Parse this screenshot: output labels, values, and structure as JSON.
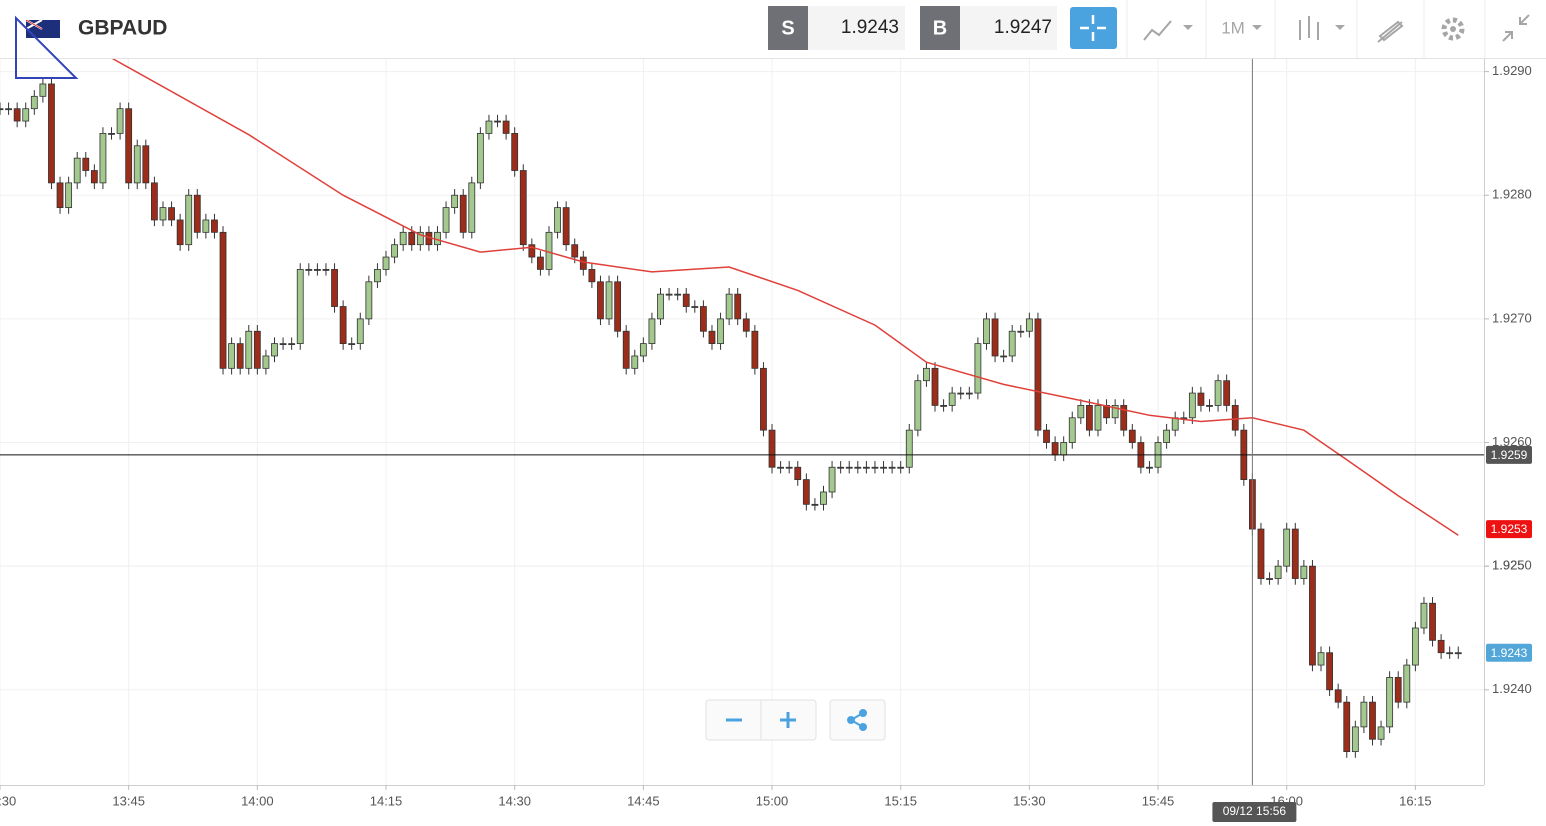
{
  "header": {
    "symbol": "GBPAUD",
    "sell_label": "S",
    "sell_price": "1.9243",
    "buy_label": "B",
    "buy_price": "1.9247",
    "timeframe": "1M"
  },
  "chart_data": {
    "type": "candlestick",
    "x": [
      "13:30",
      "13:31",
      "13:32",
      "13:33",
      "13:34",
      "13:35",
      "13:36",
      "13:37",
      "13:38",
      "13:39",
      "13:40",
      "13:41",
      "13:42",
      "13:43",
      "13:44",
      "13:45",
      "13:46",
      "13:47",
      "13:48",
      "13:49",
      "13:50",
      "13:51",
      "13:52",
      "13:53",
      "13:54",
      "13:55",
      "13:56",
      "13:57",
      "13:58",
      "13:59",
      "14:00",
      "14:01",
      "14:02",
      "14:03",
      "14:04",
      "14:05",
      "14:06",
      "14:07",
      "14:08",
      "14:09",
      "14:10",
      "14:11",
      "14:12",
      "14:13",
      "14:14",
      "14:15",
      "14:16",
      "14:17",
      "14:18",
      "14:19",
      "14:20",
      "14:21",
      "14:22",
      "14:23",
      "14:24",
      "14:25",
      "14:26",
      "14:27",
      "14:28",
      "14:29",
      "14:30",
      "14:31",
      "14:32",
      "14:33",
      "14:34",
      "14:35",
      "14:36",
      "14:37",
      "14:38",
      "14:39",
      "14:40",
      "14:41",
      "14:42",
      "14:43",
      "14:44",
      "14:45",
      "14:46",
      "14:47",
      "14:48",
      "14:49",
      "14:50",
      "14:51",
      "14:52",
      "14:53",
      "14:54",
      "14:55",
      "14:56",
      "14:57",
      "14:58",
      "14:59",
      "15:00",
      "15:01",
      "15:02",
      "15:03",
      "15:04",
      "15:05",
      "15:06",
      "15:07",
      "15:08",
      "15:09",
      "15:10",
      "15:11",
      "15:12",
      "15:13",
      "15:14",
      "15:15",
      "15:16",
      "15:17",
      "15:18",
      "15:19",
      "15:20",
      "15:21",
      "15:22",
      "15:23",
      "15:24",
      "15:25",
      "15:26",
      "15:27",
      "15:28",
      "15:29",
      "15:30",
      "15:31",
      "15:32",
      "15:33",
      "15:34",
      "15:35",
      "15:36",
      "15:37",
      "15:38",
      "15:39",
      "15:40",
      "15:41",
      "15:42",
      "15:43",
      "15:44",
      "15:45",
      "15:46",
      "15:47",
      "15:48",
      "15:49",
      "15:50",
      "15:51",
      "15:52",
      "15:53",
      "15:54",
      "15:55",
      "15:56",
      "15:57",
      "15:58",
      "15:59",
      "16:00",
      "16:01",
      "16:02",
      "16:03",
      "16:04",
      "16:05",
      "16:06",
      "16:07",
      "16:08",
      "16:09",
      "16:10",
      "16:11",
      "16:12",
      "16:13",
      "16:14",
      "16:15",
      "16:16",
      "16:17",
      "16:18",
      "16:19",
      "16:20"
    ],
    "open": [
      1.9287,
      1.9287,
      1.9287,
      1.9286,
      1.9287,
      1.9288,
      1.9289,
      1.9281,
      1.9279,
      1.9281,
      1.9283,
      1.9282,
      1.9281,
      1.9285,
      1.9285,
      1.9287,
      1.9281,
      1.9284,
      1.9281,
      1.9278,
      1.9279,
      1.9278,
      1.9276,
      1.928,
      1.9277,
      1.9278,
      1.9277,
      1.9266,
      1.9268,
      1.9266,
      1.9269,
      1.9266,
      1.9267,
      1.9268,
      1.9268,
      1.9268,
      1.9274,
      1.9274,
      1.9274,
      1.9274,
      1.9271,
      1.9268,
      1.9268,
      1.927,
      1.9273,
      1.9274,
      1.9275,
      1.9276,
      1.9277,
      1.9276,
      1.9277,
      1.9276,
      1.9277,
      1.9279,
      1.928,
      1.9277,
      1.9281,
      1.9285,
      1.9286,
      1.9286,
      1.9285,
      1.9282,
      1.9276,
      1.9275,
      1.9274,
      1.9277,
      1.9279,
      1.9276,
      1.9275,
      1.9274,
      1.9273,
      1.927,
      1.9273,
      1.9269,
      1.9266,
      1.9267,
      1.9268,
      1.927,
      1.9272,
      1.9272,
      1.9272,
      1.9271,
      1.9271,
      1.9269,
      1.9268,
      1.927,
      1.9272,
      1.927,
      1.9269,
      1.9266,
      1.9261,
      1.9258,
      1.9258,
      1.9258,
      1.9257,
      1.9255,
      1.9255,
      1.9256,
      1.9258,
      1.9258,
      1.9258,
      1.9258,
      1.9258,
      1.9258,
      1.9258,
      1.9258,
      1.9258,
      1.9261,
      1.9265,
      1.9266,
      1.9263,
      1.9263,
      1.9264,
      1.9264,
      1.9264,
      1.9268,
      1.927,
      1.9267,
      1.9267,
      1.9269,
      1.9269,
      1.927,
      1.9261,
      1.926,
      1.9259,
      1.926,
      1.9262,
      1.9263,
      1.9261,
      1.9263,
      1.9262,
      1.9263,
      1.9261,
      1.926,
      1.9258,
      1.9258,
      1.926,
      1.9261,
      1.9262,
      1.9262,
      1.9264,
      1.9263,
      1.9263,
      1.9265,
      1.9263,
      1.9261,
      1.9257,
      1.9253,
      1.9249,
      1.9249,
      1.925,
      1.9253,
      1.9249,
      1.925,
      1.9242,
      1.9243,
      1.924,
      1.9239,
      1.9235,
      1.9237,
      1.9239,
      1.9236,
      1.9237,
      1.9241,
      1.9239,
      1.9242,
      1.9245,
      1.9247,
      1.9244,
      1.9243,
      1.9243
    ],
    "high": [
      1.92875,
      1.92875,
      1.92875,
      1.92875,
      1.92885,
      1.92895,
      1.92895,
      1.92815,
      1.92815,
      1.92835,
      1.92835,
      1.92825,
      1.92855,
      1.92855,
      1.92875,
      1.92875,
      1.92845,
      1.92845,
      1.92815,
      1.92795,
      1.92795,
      1.92785,
      1.92805,
      1.92805,
      1.92785,
      1.92785,
      1.92775,
      1.92685,
      1.92685,
      1.92695,
      1.92695,
      1.92675,
      1.92685,
      1.92685,
      1.92685,
      1.92745,
      1.92745,
      1.92745,
      1.92745,
      1.92745,
      1.92715,
      1.92685,
      1.92705,
      1.92735,
      1.92745,
      1.92755,
      1.92765,
      1.92775,
      1.92775,
      1.92775,
      1.92775,
      1.92775,
      1.92795,
      1.92805,
      1.92805,
      1.92815,
      1.92855,
      1.92865,
      1.92865,
      1.92865,
      1.92855,
      1.92825,
      1.92765,
      1.92755,
      1.92775,
      1.92795,
      1.92795,
      1.92765,
      1.92755,
      1.92745,
      1.92735,
      1.92735,
      1.92735,
      1.92695,
      1.92675,
      1.92685,
      1.92705,
      1.92725,
      1.92725,
      1.92725,
      1.92725,
      1.92715,
      1.92715,
      1.92695,
      1.92705,
      1.92725,
      1.92725,
      1.92705,
      1.92695,
      1.92665,
      1.92615,
      1.92585,
      1.92585,
      1.92585,
      1.92575,
      1.92555,
      1.92565,
      1.92585,
      1.92585,
      1.92585,
      1.92585,
      1.92585,
      1.92585,
      1.92585,
      1.92585,
      1.92585,
      1.92615,
      1.92655,
      1.92665,
      1.92665,
      1.92635,
      1.92645,
      1.92645,
      1.92645,
      1.92685,
      1.92705,
      1.92705,
      1.92675,
      1.92695,
      1.92695,
      1.92705,
      1.92705,
      1.92615,
      1.92605,
      1.92605,
      1.92625,
      1.92635,
      1.92635,
      1.92635,
      1.92635,
      1.92635,
      1.92635,
      1.92615,
      1.92605,
      1.92585,
      1.92605,
      1.92615,
      1.92625,
      1.92625,
      1.92645,
      1.92645,
      1.92635,
      1.92655,
      1.92655,
      1.92635,
      1.92615,
      1.92575,
      1.92535,
      1.92495,
      1.92505,
      1.92535,
      1.92535,
      1.92505,
      1.92505,
      1.92435,
      1.92435,
      1.92405,
      1.92395,
      1.92375,
      1.92395,
      1.92395,
      1.92375,
      1.92415,
      1.92415,
      1.92425,
      1.92455,
      1.92475,
      1.92475,
      1.92445,
      1.92435,
      1.92435
    ],
    "low": [
      1.92865,
      1.92865,
      1.92855,
      1.92855,
      1.92865,
      1.92875,
      1.92805,
      1.92785,
      1.92785,
      1.92805,
      1.92815,
      1.92805,
      1.92805,
      1.92845,
      1.92845,
      1.92805,
      1.92805,
      1.92805,
      1.92775,
      1.92775,
      1.92775,
      1.92755,
      1.92755,
      1.92765,
      1.92765,
      1.92765,
      1.92655,
      1.92655,
      1.92655,
      1.92655,
      1.92655,
      1.92655,
      1.92665,
      1.92675,
      1.92675,
      1.92675,
      1.92735,
      1.92735,
      1.92735,
      1.92705,
      1.92675,
      1.92675,
      1.92675,
      1.92695,
      1.92725,
      1.92735,
      1.92745,
      1.92755,
      1.92755,
      1.92755,
      1.92755,
      1.92755,
      1.92765,
      1.92785,
      1.92765,
      1.92765,
      1.92805,
      1.92845,
      1.92855,
      1.92845,
      1.92815,
      1.92755,
      1.92745,
      1.92735,
      1.92735,
      1.92765,
      1.92755,
      1.92745,
      1.92735,
      1.92725,
      1.92695,
      1.92695,
      1.92685,
      1.92655,
      1.92655,
      1.92665,
      1.92675,
      1.92695,
      1.92715,
      1.92715,
      1.92705,
      1.92705,
      1.92685,
      1.92675,
      1.92675,
      1.92695,
      1.92695,
      1.92685,
      1.92655,
      1.92605,
      1.92575,
      1.92575,
      1.92575,
      1.92565,
      1.92545,
      1.92545,
      1.92545,
      1.92555,
      1.92575,
      1.92575,
      1.92575,
      1.92575,
      1.92575,
      1.92575,
      1.92575,
      1.92575,
      1.92575,
      1.92605,
      1.92645,
      1.92625,
      1.92625,
      1.92625,
      1.92635,
      1.92635,
      1.92635,
      1.92675,
      1.92665,
      1.92665,
      1.92665,
      1.92685,
      1.92685,
      1.92605,
      1.92595,
      1.92585,
      1.92585,
      1.92595,
      1.92615,
      1.92605,
      1.92605,
      1.92615,
      1.92615,
      1.92605,
      1.92595,
      1.92575,
      1.92575,
      1.92575,
      1.92595,
      1.92605,
      1.92615,
      1.92615,
      1.92625,
      1.92625,
      1.92625,
      1.92625,
      1.92605,
      1.92565,
      1.92525,
      1.92485,
      1.92485,
      1.92485,
      1.92495,
      1.92485,
      1.92485,
      1.92415,
      1.92415,
      1.92395,
      1.92385,
      1.92345,
      1.92345,
      1.92365,
      1.92355,
      1.92355,
      1.92365,
      1.92385,
      1.92385,
      1.92415,
      1.92445,
      1.92435,
      1.92425,
      1.92425,
      1.92425
    ],
    "close": [
      1.9287,
      1.9287,
      1.9286,
      1.9287,
      1.9288,
      1.9289,
      1.9281,
      1.9279,
      1.9281,
      1.9283,
      1.9282,
      1.9281,
      1.9285,
      1.9285,
      1.9287,
      1.9281,
      1.9284,
      1.9281,
      1.9278,
      1.9279,
      1.9278,
      1.9276,
      1.928,
      1.9277,
      1.9278,
      1.9277,
      1.9266,
      1.9268,
      1.9266,
      1.9269,
      1.9266,
      1.9267,
      1.9268,
      1.9268,
      1.9268,
      1.9274,
      1.9274,
      1.9274,
      1.9274,
      1.9271,
      1.9268,
      1.9268,
      1.927,
      1.9273,
      1.9274,
      1.9275,
      1.9276,
      1.9277,
      1.9276,
      1.9277,
      1.9276,
      1.9277,
      1.9279,
      1.928,
      1.9277,
      1.9281,
      1.9285,
      1.9286,
      1.9286,
      1.9285,
      1.9282,
      1.9276,
      1.9275,
      1.9274,
      1.9277,
      1.9279,
      1.9276,
      1.9275,
      1.9274,
      1.9273,
      1.927,
      1.9273,
      1.9269,
      1.9266,
      1.9267,
      1.9268,
      1.927,
      1.9272,
      1.9272,
      1.9272,
      1.9271,
      1.9271,
      1.9269,
      1.9268,
      1.927,
      1.9272,
      1.927,
      1.9269,
      1.9266,
      1.9261,
      1.9258,
      1.9258,
      1.9258,
      1.9257,
      1.9255,
      1.9255,
      1.9256,
      1.9258,
      1.9258,
      1.9258,
      1.9258,
      1.9258,
      1.9258,
      1.9258,
      1.9258,
      1.9258,
      1.9261,
      1.9265,
      1.9266,
      1.9263,
      1.9263,
      1.9264,
      1.9264,
      1.9264,
      1.9268,
      1.927,
      1.9267,
      1.9267,
      1.9269,
      1.9269,
      1.927,
      1.9261,
      1.926,
      1.9259,
      1.926,
      1.9262,
      1.9263,
      1.9261,
      1.9263,
      1.9262,
      1.9263,
      1.9261,
      1.926,
      1.9258,
      1.9258,
      1.926,
      1.9261,
      1.9262,
      1.9262,
      1.9264,
      1.9263,
      1.9263,
      1.9265,
      1.9263,
      1.9261,
      1.9257,
      1.9253,
      1.9249,
      1.9249,
      1.925,
      1.9253,
      1.9249,
      1.925,
      1.9242,
      1.9243,
      1.924,
      1.9239,
      1.9235,
      1.9237,
      1.9239,
      1.9236,
      1.9237,
      1.9241,
      1.9239,
      1.9242,
      1.9245,
      1.9247,
      1.9244,
      1.9243,
      1.9243,
      1.9243
    ],
    "up_color": "#a3c98f",
    "down_color": "#9b2d1a",
    "ma": {
      "color": "#e0403a",
      "x": [
        "13:43",
        "13:59",
        "14:10",
        "14:19",
        "14:26",
        "14:32",
        "14:38",
        "14:46",
        "14:55",
        "15:03",
        "15:12",
        "15:18",
        "15:27",
        "15:36",
        "15:44",
        "15:50",
        "15:56",
        "16:02",
        "16:07",
        "16:13",
        "16:20"
      ],
      "values": [
        1.92911,
        1.92849,
        1.928,
        1.92768,
        1.92754,
        1.92758,
        1.92746,
        1.92738,
        1.92742,
        1.92723,
        1.92695,
        1.92665,
        1.92647,
        1.92634,
        1.92622,
        1.92617,
        1.9262,
        1.9261,
        1.92586,
        1.92557,
        1.92525
      ]
    },
    "xlim": [
      "13:30",
      "16:23"
    ],
    "xticks": [
      "13:30",
      "13:45",
      "14:00",
      "14:15",
      "14:30",
      "14:45",
      "15:00",
      "15:15",
      "15:30",
      "15:45",
      "16:00",
      "16:15"
    ],
    "ylim": [
      1.92323,
      1.92911
    ],
    "yticks": [
      {
        "value": 1.924,
        "label": "1.9240"
      },
      1.925,
      {
        "value": 1.925,
        "label": "1.9250"
      },
      {
        "value": 1.926,
        "label": "1.9260"
      },
      {
        "value": 1.927,
        "label": "1.9270"
      },
      {
        "value": 1.928,
        "label": "1.9280"
      },
      {
        "value": 1.929,
        "label": "1.9290"
      }
    ],
    "grid": true,
    "crosshair": {
      "time": "09/12 15:56",
      "price": 1.9259
    },
    "price_tags": [
      {
        "value": 1.9253,
        "color": "#ee1111"
      },
      {
        "value": 1.9243,
        "color": "#52a7d8"
      }
    ]
  }
}
